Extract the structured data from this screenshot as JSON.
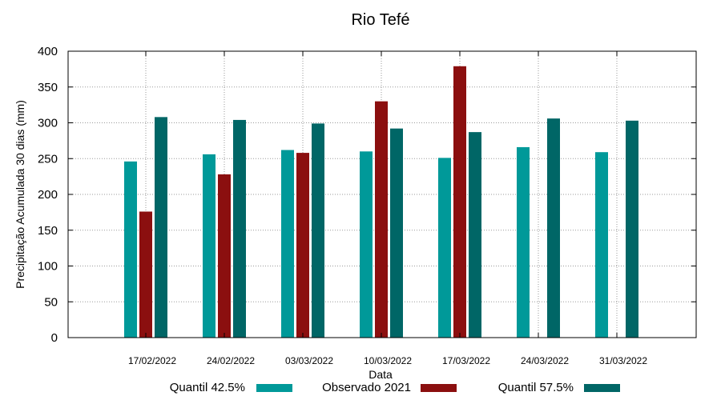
{
  "chart_data": {
    "type": "bar",
    "title": "Rio Tefé",
    "xlabel": "Data",
    "ylabel": "Precipitação Acumulada 30 dias (mm)",
    "ylim": [
      0,
      400
    ],
    "yticks": [
      0,
      50,
      100,
      150,
      200,
      250,
      300,
      350,
      400
    ],
    "grid": true,
    "legend_position": "bottom",
    "categories": [
      "17/02/2022",
      "24/02/2022",
      "03/03/2022",
      "10/03/2022",
      "17/03/2022",
      "24/03/2022",
      "31/03/2022"
    ],
    "series": [
      {
        "name": "Quantil 42.5%",
        "color": "#009999",
        "values": [
          246,
          256,
          262,
          260,
          251,
          266,
          259
        ]
      },
      {
        "name": "Observado 2021",
        "color": "#8b0f0f",
        "values": [
          176,
          228,
          258,
          330,
          379,
          null,
          null
        ]
      },
      {
        "name": "Quantil 57.5%",
        "color": "#006666",
        "values": [
          308,
          304,
          299,
          292,
          287,
          306,
          303
        ]
      }
    ]
  }
}
